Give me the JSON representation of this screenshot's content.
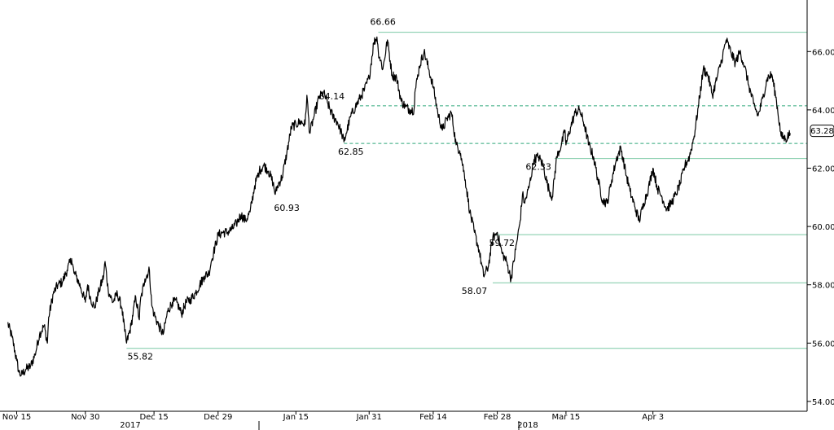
{
  "chart_data": {
    "type": "line",
    "title": "",
    "xlabel": "",
    "ylabel": "",
    "ylim": [
      53.7,
      68.0
    ],
    "y_ticks": [
      54.0,
      56.0,
      58.0,
      60.0,
      62.0,
      64.0,
      66.0
    ],
    "y_tick_labels": [
      "54.00",
      "56.00",
      "58.00",
      "60.00",
      "62.00",
      "64.00",
      "66.00"
    ],
    "x_ticks": [
      {
        "label": "Nov 15",
        "day": 0
      },
      {
        "label": "Nov 30",
        "day": 15
      },
      {
        "label": "Dec 15",
        "day": 30
      },
      {
        "label": "Dec 29",
        "day": 44
      },
      {
        "label": "Jan 15",
        "day": 61
      },
      {
        "label": "Jan 31",
        "day": 77
      },
      {
        "label": "Feb 14",
        "day": 91
      },
      {
        "label": "Feb 28",
        "day": 105
      },
      {
        "label": "Mar 15",
        "day": 120
      },
      {
        "label": "Apr 3",
        "day": 139
      }
    ],
    "year_labels": [
      {
        "label": "2017",
        "day": 22
      },
      {
        "label": "2018",
        "day": 91
      }
    ],
    "grid": false,
    "series": [
      {
        "color": "#000000",
        "points": [
          [
            -2,
            56.7
          ],
          [
            -1,
            56.2
          ],
          [
            0,
            55.4
          ],
          [
            0.5,
            55.0
          ],
          [
            1,
            54.9
          ],
          [
            2,
            55.1
          ],
          [
            3,
            55.2
          ],
          [
            4,
            55.6
          ],
          [
            5,
            56.3
          ],
          [
            6,
            56.6
          ],
          [
            6.7,
            56.0
          ],
          [
            7,
            56.9
          ],
          [
            8,
            57.7
          ],
          [
            9,
            58.0
          ],
          [
            10,
            58.1
          ],
          [
            11,
            58.5
          ],
          [
            12,
            58.9
          ],
          [
            12.5,
            58.4
          ],
          [
            13,
            58.3
          ],
          [
            14,
            57.9
          ],
          [
            15,
            57.4
          ],
          [
            15.5,
            58.0
          ],
          [
            16,
            57.6
          ],
          [
            17,
            57.2
          ],
          [
            18,
            57.8
          ],
          [
            19,
            58.3
          ],
          [
            19.3,
            58.8
          ],
          [
            20,
            57.8
          ],
          [
            21,
            57.4
          ],
          [
            22,
            57.7
          ],
          [
            23,
            57.2
          ],
          [
            23.6,
            56.4
          ],
          [
            24,
            56.0
          ],
          [
            25,
            56.6
          ],
          [
            26,
            57.6
          ],
          [
            26.8,
            56.8
          ],
          [
            27,
            57.4
          ],
          [
            28,
            58.2
          ],
          [
            29,
            58.5
          ],
          [
            29.5,
            57.3
          ],
          [
            30,
            57.0
          ],
          [
            31,
            56.6
          ],
          [
            32,
            56.3
          ],
          [
            33,
            57.1
          ],
          [
            34,
            57.4
          ],
          [
            35,
            57.4
          ],
          [
            36,
            57.0
          ],
          [
            37,
            57.4
          ],
          [
            38,
            57.5
          ],
          [
            39,
            57.7
          ],
          [
            40,
            58.0
          ],
          [
            41,
            58.3
          ],
          [
            42,
            58.4
          ],
          [
            42.5,
            58.8
          ],
          [
            43,
            59.1
          ],
          [
            44,
            59.7
          ],
          [
            45,
            59.8
          ],
          [
            46,
            59.8
          ],
          [
            47,
            59.9
          ],
          [
            48,
            60.1
          ],
          [
            49,
            60.4
          ],
          [
            50,
            60.2
          ],
          [
            51,
            60.5
          ],
          [
            52,
            61.4
          ],
          [
            53,
            61.9
          ],
          [
            54,
            62.1
          ],
          [
            55,
            61.9
          ],
          [
            56,
            61.5
          ],
          [
            56.5,
            61.1
          ],
          [
            57,
            61.4
          ],
          [
            58,
            61.7
          ],
          [
            59,
            62.5
          ],
          [
            60,
            63.4
          ],
          [
            61,
            63.5
          ],
          [
            62,
            63.6
          ],
          [
            63,
            63.5
          ],
          [
            63.4,
            64.5
          ],
          [
            64,
            63.2
          ],
          [
            65,
            63.8
          ],
          [
            66,
            64.4
          ],
          [
            67,
            64.6
          ],
          [
            68,
            64.2
          ],
          [
            69,
            63.8
          ],
          [
            70,
            63.6
          ],
          [
            71,
            63.2
          ],
          [
            71.5,
            62.9
          ],
          [
            72,
            63.2
          ],
          [
            73,
            63.8
          ],
          [
            74,
            64.1
          ],
          [
            75,
            64.4
          ],
          [
            76,
            64.7
          ],
          [
            77,
            65.1
          ],
          [
            78,
            66.3
          ],
          [
            78.7,
            66.5
          ],
          [
            79,
            66.0
          ],
          [
            80,
            65.4
          ],
          [
            81,
            66.4
          ],
          [
            82,
            65.2
          ],
          [
            83,
            65.1
          ],
          [
            84,
            64.3
          ],
          [
            85,
            64.1
          ],
          [
            86,
            64.0
          ],
          [
            86.8,
            64.0
          ],
          [
            87,
            64.6
          ],
          [
            88,
            65.5
          ],
          [
            89,
            66.0
          ],
          [
            90,
            65.4
          ],
          [
            91,
            64.8
          ],
          [
            92,
            63.9
          ],
          [
            93,
            63.3
          ],
          [
            94,
            63.7
          ],
          [
            95,
            63.9
          ],
          [
            96,
            62.8
          ],
          [
            96.8,
            62.6
          ],
          [
            97,
            62.5
          ],
          [
            98,
            61.6
          ],
          [
            99,
            60.5
          ],
          [
            100,
            59.8
          ],
          [
            101,
            59.2
          ],
          [
            102,
            58.3
          ],
          [
            103,
            58.6
          ],
          [
            104,
            59.6
          ],
          [
            105,
            59.8
          ],
          [
            106,
            59.1
          ],
          [
            107,
            58.8
          ],
          [
            108,
            58.2
          ],
          [
            109,
            59.2
          ],
          [
            110,
            60.2
          ],
          [
            110.5,
            61.1
          ],
          [
            111,
            60.8
          ],
          [
            112,
            61.4
          ],
          [
            113,
            62.3
          ],
          [
            114,
            62.4
          ],
          [
            115,
            62.1
          ],
          [
            116,
            61.4
          ],
          [
            117,
            61.0
          ],
          [
            118,
            62.4
          ],
          [
            119,
            62.8
          ],
          [
            119.8,
            63.3
          ],
          [
            120,
            62.8
          ],
          [
            121,
            63.4
          ],
          [
            122,
            63.9
          ],
          [
            123,
            64.0
          ],
          [
            124,
            63.5
          ],
          [
            125,
            62.8
          ],
          [
            126,
            62.4
          ],
          [
            127,
            61.6
          ],
          [
            128,
            60.9
          ],
          [
            129,
            60.8
          ],
          [
            130,
            61.6
          ],
          [
            131,
            62.3
          ],
          [
            132,
            62.7
          ],
          [
            133,
            61.9
          ],
          [
            134,
            61.2
          ],
          [
            135,
            60.7
          ],
          [
            136,
            60.2
          ],
          [
            137,
            60.8
          ],
          [
            138,
            61.3
          ],
          [
            139,
            62.0
          ],
          [
            140,
            61.3
          ],
          [
            141,
            61.0
          ],
          [
            142,
            60.6
          ],
          [
            143,
            60.8
          ],
          [
            144,
            61.1
          ],
          [
            145,
            61.5
          ],
          [
            146,
            62.1
          ],
          [
            147,
            62.4
          ],
          [
            148,
            63.1
          ],
          [
            149,
            64.2
          ],
          [
            150,
            65.4
          ],
          [
            151,
            65.2
          ],
          [
            152,
            64.5
          ],
          [
            153,
            65.1
          ],
          [
            154,
            65.7
          ],
          [
            155,
            66.4
          ],
          [
            156,
            66.0
          ],
          [
            157,
            65.6
          ],
          [
            158,
            66.0
          ],
          [
            159,
            65.5
          ],
          [
            160,
            64.8
          ],
          [
            161,
            64.2
          ],
          [
            162,
            63.8
          ],
          [
            163,
            64.4
          ],
          [
            164,
            65.1
          ],
          [
            165,
            65.2
          ],
          [
            166,
            64.3
          ],
          [
            167,
            63.1
          ],
          [
            168,
            63.0
          ],
          [
            169,
            63.2
          ]
        ],
        "last_value": 63.28,
        "last_label": "63.28"
      }
    ],
    "reference_lines": [
      {
        "value": 66.66,
        "style": "solid",
        "color": "#7cc9a5",
        "from_day": 79
      },
      {
        "value": 64.14,
        "style": "dashed",
        "color": "#2fa87a",
        "from_day": 75
      },
      {
        "value": 62.85,
        "style": "dashed",
        "color": "#2fa87a",
        "from_day": 71.5
      },
      {
        "value": 62.33,
        "style": "solid",
        "color": "#7cc9a5",
        "from_day": 117.5
      },
      {
        "value": 59.72,
        "style": "solid",
        "color": "#7cc9a5",
        "from_day": 104
      },
      {
        "value": 58.07,
        "style": "solid",
        "color": "#7cc9a5",
        "from_day": 104
      },
      {
        "value": 55.82,
        "style": "solid",
        "color": "#7cc9a5",
        "from_day": 24
      }
    ],
    "annotations": [
      {
        "text": "66.66",
        "day": 80,
        "value": 66.66,
        "position": "above"
      },
      {
        "text": "64.14",
        "day": 72,
        "value": 64.14,
        "position": "above-left"
      },
      {
        "text": "62.85",
        "day": 73,
        "value": 62.85,
        "position": "below"
      },
      {
        "text": "62.33",
        "day": 114,
        "value": 62.33,
        "position": "below"
      },
      {
        "text": "60.93",
        "day": 59,
        "value": 60.93,
        "position": "below"
      },
      {
        "text": "59.72",
        "day": 106,
        "value": 59.72,
        "position": "below"
      },
      {
        "text": "58.07",
        "day": 100,
        "value": 58.07,
        "position": "below"
      },
      {
        "text": "55.82",
        "day": 27,
        "value": 55.82,
        "position": "below"
      }
    ],
    "colors": {
      "line": "#000000",
      "reference_solid": "#7cc9a5",
      "reference_dashed": "#2fa87a",
      "axis": "#000000"
    }
  }
}
